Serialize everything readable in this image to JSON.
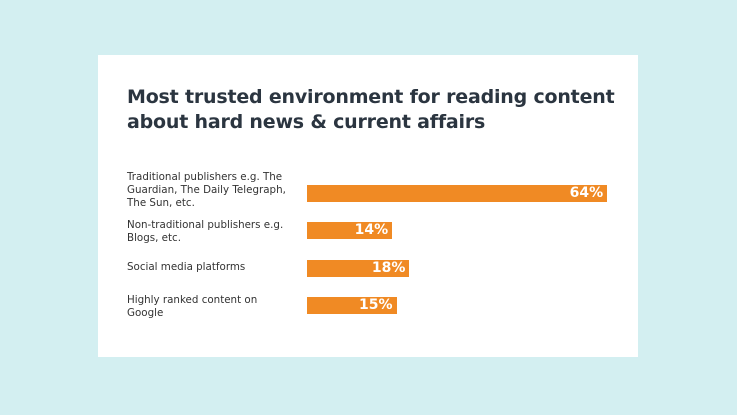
{
  "chart_data": {
    "type": "bar",
    "orientation": "horizontal",
    "title": "Most trusted environment for reading content about hard news & current affairs",
    "categories": [
      "Traditional publishers e.g. The Guardian, The Daily Telegraph, The Sun, etc.",
      "Non-traditional publishers e.g. Blogs, etc.",
      "Social media platforms",
      "Highly ranked content on Google"
    ],
    "values": [
      64,
      14,
      18,
      15
    ],
    "value_labels": [
      "64%",
      "14%",
      "18%",
      "15%"
    ],
    "xlabel": "",
    "ylabel": "",
    "xlim": [
      0,
      64
    ],
    "grid": false,
    "bar_color": "#f08a24"
  }
}
